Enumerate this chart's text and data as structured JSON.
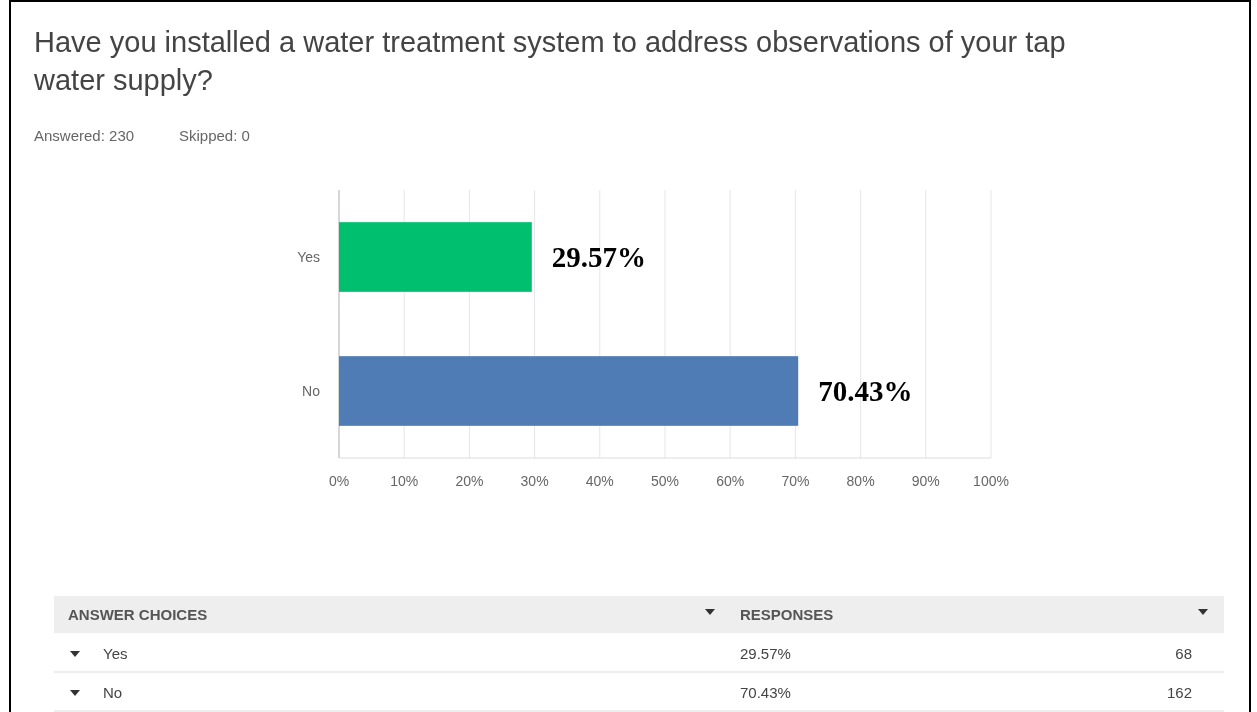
{
  "chart_data": {
    "type": "bar",
    "orientation": "horizontal",
    "title": "Have you installed a water treatment system to address observations of your tap water supply?",
    "categories": [
      "Yes",
      "No"
    ],
    "values": [
      29.57,
      70.43
    ],
    "colors": [
      "#00bf6f",
      "#507cb6"
    ],
    "value_labels": [
      "29.57%",
      "70.43%"
    ],
    "xlim": [
      0,
      100
    ],
    "xticks": [
      {
        "value": 0,
        "label": "0%"
      },
      {
        "value": 10,
        "label": "10%"
      },
      {
        "value": 20,
        "label": "20%"
      },
      {
        "value": 30,
        "label": "30%"
      },
      {
        "value": 40,
        "label": "40%"
      },
      {
        "value": 50,
        "label": "50%"
      },
      {
        "value": 60,
        "label": "60%"
      },
      {
        "value": 70,
        "label": "70%"
      },
      {
        "value": 80,
        "label": "80%"
      },
      {
        "value": 90,
        "label": "90%"
      },
      {
        "value": 100,
        "label": "100%"
      }
    ],
    "grid": "x",
    "annotations": [
      "Answered: 230",
      "Skipped: 0",
      "ANSWER CHOICES",
      "RESPONSES",
      "68",
      "162"
    ]
  }
}
